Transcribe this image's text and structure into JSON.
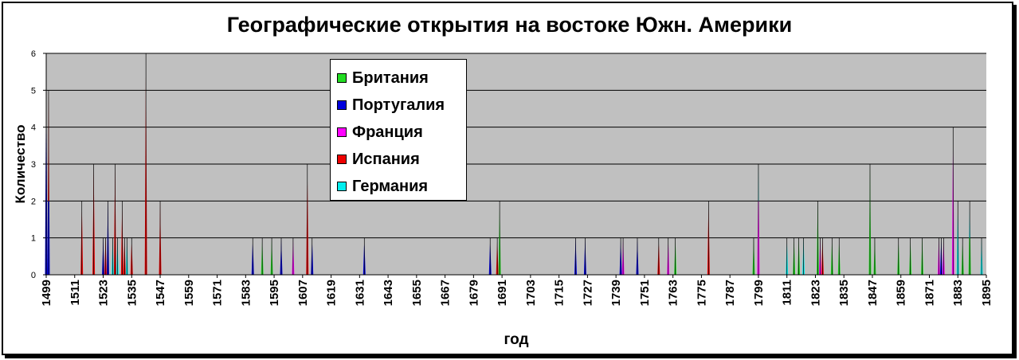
{
  "chart_data": {
    "type": "area",
    "title": "Географические открытия на востоке Южн. Америки",
    "xlabel": "год",
    "ylabel": "Количество",
    "ylim": [
      0,
      6
    ],
    "yticks": [
      0,
      1,
      2,
      3,
      4,
      5,
      6
    ],
    "xlim": [
      1499,
      1895
    ],
    "xticks": [
      1499,
      1511,
      1523,
      1535,
      1547,
      1559,
      1571,
      1583,
      1595,
      1607,
      1619,
      1631,
      1643,
      1655,
      1667,
      1679,
      1691,
      1703,
      1715,
      1727,
      1739,
      1751,
      1763,
      1775,
      1787,
      1799,
      1811,
      1823,
      1835,
      1847,
      1859,
      1871,
      1883,
      1895
    ],
    "stacked": true,
    "grid": true,
    "legend_position": "top-center",
    "series": [
      {
        "name": "Британия",
        "color": "#22dd22",
        "points": [
          [
            1590,
            1
          ],
          [
            1594,
            1
          ],
          [
            1690,
            2
          ],
          [
            1764,
            1
          ],
          [
            1797,
            1
          ],
          [
            1814,
            1
          ],
          [
            1816,
            1
          ],
          [
            1824,
            2
          ],
          [
            1830,
            1
          ],
          [
            1833,
            1
          ],
          [
            1846,
            3
          ],
          [
            1848,
            1
          ],
          [
            1858,
            1
          ],
          [
            1863,
            1
          ],
          [
            1868,
            1
          ],
          [
            1885,
            1
          ],
          [
            1888,
            1
          ]
        ]
      },
      {
        "name": "Португалия",
        "color": "#0000dd",
        "points": [
          [
            1499,
            6
          ],
          [
            1500,
            2
          ],
          [
            1523,
            1
          ],
          [
            1525,
            2
          ],
          [
            1586,
            1
          ],
          [
            1598,
            1
          ],
          [
            1611,
            1
          ],
          [
            1633,
            1
          ],
          [
            1686,
            1
          ],
          [
            1722,
            1
          ],
          [
            1726,
            1
          ],
          [
            1741,
            1
          ],
          [
            1748,
            1
          ],
          [
            1876,
            1
          ]
        ]
      },
      {
        "name": "Франция",
        "color": "#ff00ff",
        "points": [
          [
            1603,
            1
          ],
          [
            1742,
            1
          ],
          [
            1761,
            1
          ],
          [
            1799,
            2
          ],
          [
            1825,
            1
          ],
          [
            1875,
            1
          ],
          [
            1877,
            1
          ],
          [
            1881,
            4
          ]
        ]
      },
      {
        "name": "Испания",
        "color": "#ee0000",
        "points": [
          [
            1500,
            3
          ],
          [
            1514,
            2
          ],
          [
            1519,
            3
          ],
          [
            1524,
            1
          ],
          [
            1528,
            3
          ],
          [
            1531,
            2
          ],
          [
            1532,
            1
          ],
          [
            1535,
            1
          ],
          [
            1541,
            6
          ],
          [
            1547,
            2
          ],
          [
            1609,
            3
          ],
          [
            1689,
            1
          ],
          [
            1757,
            1
          ],
          [
            1778,
            2
          ],
          [
            1826,
            1
          ]
        ]
      },
      {
        "name": "Германия",
        "color": "#00eeee",
        "points": [
          [
            1527,
            1
          ],
          [
            1529,
            1
          ],
          [
            1533,
            1
          ],
          [
            1799,
            1
          ],
          [
            1811,
            1
          ],
          [
            1818,
            1
          ],
          [
            1883,
            2
          ],
          [
            1888,
            1
          ],
          [
            1893,
            1
          ]
        ]
      }
    ]
  }
}
